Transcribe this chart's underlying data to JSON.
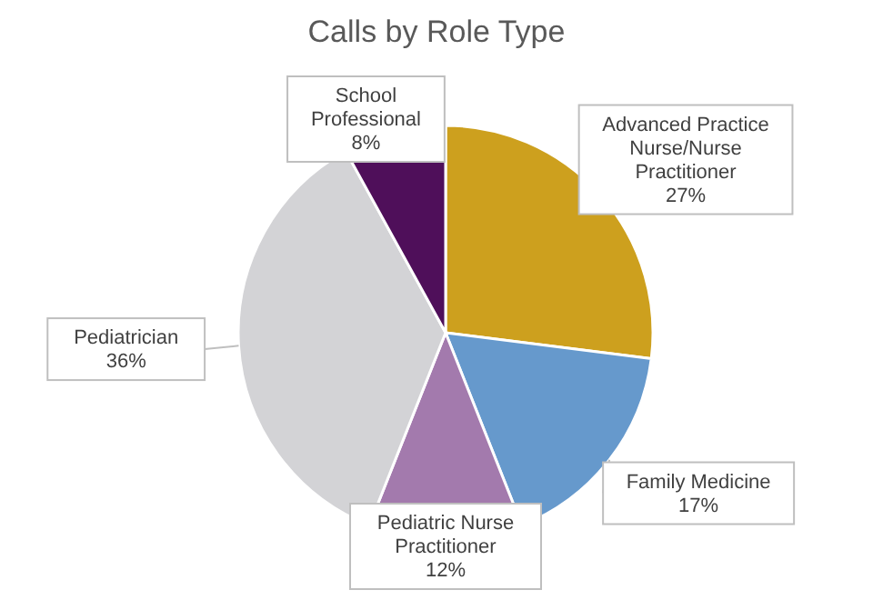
{
  "chart_data": {
    "type": "pie",
    "title": "Calls by Role Type",
    "categories": [
      "Advanced Practice Nurse/Nurse Practitioner",
      "Family Medicine",
      "Pediatric Nurse Practitioner",
      "Pediatrician",
      "School Professional"
    ],
    "values": [
      27,
      17,
      12,
      36,
      8
    ],
    "value_labels": [
      "27%",
      "17%",
      "12%",
      "36%",
      "8%"
    ],
    "colors": [
      "#cda01e",
      "#6699cc",
      "#a37aad",
      "#d3d3d6",
      "#4f0f5a"
    ],
    "legend": false
  }
}
